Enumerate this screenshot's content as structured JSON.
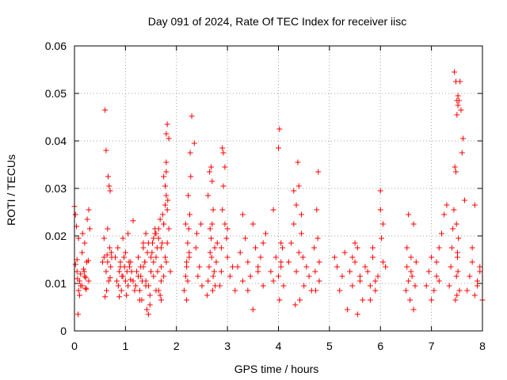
{
  "chart_data": {
    "type": "scatter",
    "title": "Day 091 of 2024, Rate Of TEC Index for receiver iisc",
    "xlabel": "GPS time / hours",
    "ylabel": "ROTI / TECUs",
    "xlim": [
      0,
      8
    ],
    "ylim": [
      0,
      0.06
    ],
    "xticks": [
      0,
      1,
      2,
      3,
      4,
      5,
      6,
      7,
      8
    ],
    "xtick_labels": [
      "0",
      "1",
      "2",
      "3",
      "4",
      "5",
      "6",
      "7",
      "8"
    ],
    "yticks": [
      0,
      0.01,
      0.02,
      0.03,
      0.04,
      0.05,
      0.06
    ],
    "ytick_labels": [
      "0",
      "0.01",
      "0.02",
      "0.03",
      "0.04",
      "0.05",
      "0.06"
    ],
    "grid": true,
    "marker": "+",
    "series_color": "#ff0000",
    "series": [
      {
        "name": "ROTI",
        "x": [
          0.0,
          0.02,
          0.04,
          0.05,
          0.06,
          0.08,
          0.1,
          0.12,
          0.15,
          0.18,
          0.2,
          0.22,
          0.25,
          0.28,
          0.3,
          0.02,
          0.07,
          0.12,
          0.16,
          0.2,
          0.24,
          0.28,
          0.05,
          0.1,
          0.15,
          0.19,
          0.23,
          0.27,
          0.08,
          0.22,
          0.55,
          0.58,
          0.6,
          0.62,
          0.64,
          0.66,
          0.68,
          0.7,
          0.72,
          0.62,
          0.63,
          0.65,
          0.67,
          0.69,
          0.71,
          0.6,
          0.65,
          0.58,
          0.7,
          0.73,
          0.8,
          0.83,
          0.86,
          0.88,
          0.9,
          0.92,
          0.95,
          0.98,
          1.0,
          1.02,
          1.05,
          1.08,
          1.1,
          1.12,
          1.15,
          1.18,
          0.85,
          0.9,
          0.95,
          1.0,
          1.05,
          1.1,
          1.15,
          0.88,
          0.93,
          0.97,
          1.03,
          1.07,
          1.2,
          1.22,
          1.25,
          1.28,
          1.3,
          1.32,
          1.35,
          1.38,
          1.4,
          1.42,
          1.45,
          1.48,
          1.5,
          1.52,
          1.55,
          1.58,
          1.6,
          1.62,
          1.65,
          1.68,
          1.7,
          1.72,
          1.75,
          1.78,
          1.8,
          1.82,
          1.85,
          1.25,
          1.3,
          1.35,
          1.4,
          1.45,
          1.5,
          1.55,
          1.6,
          1.65,
          1.7,
          1.75,
          1.8,
          1.28,
          1.33,
          1.38,
          1.43,
          1.48,
          1.53,
          1.58,
          1.63,
          1.68,
          1.73,
          1.78,
          1.83,
          1.35,
          1.4,
          1.45,
          1.5,
          1.55,
          1.6,
          1.65,
          1.7,
          1.75,
          1.8,
          1.7,
          1.75,
          1.78,
          1.8,
          1.82,
          1.85,
          1.8,
          1.82,
          1.78,
          1.88,
          2.15,
          2.18,
          2.2,
          2.22,
          2.24,
          2.26,
          2.28,
          2.2,
          2.22,
          2.25,
          2.18,
          2.23,
          2.27,
          2.2,
          2.25,
          2.3,
          2.35,
          2.4,
          2.45,
          2.5,
          2.38,
          2.42,
          2.48,
          2.6,
          2.62,
          2.64,
          2.66,
          2.68,
          2.7,
          2.72,
          2.74,
          2.76,
          2.78,
          2.8,
          2.65,
          2.68,
          2.7,
          2.72,
          2.66,
          2.69,
          2.71,
          2.62,
          2.75,
          2.85,
          2.88,
          2.9,
          2.92,
          2.95,
          2.98,
          3.0,
          3.05,
          3.1,
          3.15,
          2.9,
          2.92,
          2.95,
          2.88,
          3.0,
          3.2,
          3.25,
          3.3,
          3.35,
          3.4,
          3.45,
          3.5,
          3.55,
          3.6,
          3.65,
          3.7,
          3.75,
          3.3,
          3.4,
          3.5,
          3.6,
          3.7,
          3.85,
          3.9,
          3.95,
          4.0,
          4.02,
          4.05,
          4.08,
          4.1,
          4.0,
          4.05,
          4.02,
          3.9,
          4.05,
          4.2,
          4.25,
          4.3,
          4.35,
          4.4,
          4.45,
          4.5,
          4.55,
          4.6,
          4.65,
          4.3,
          4.35,
          4.4,
          4.45,
          4.38,
          4.42,
          4.33,
          4.48,
          4.7,
          4.72,
          4.75,
          4.78,
          4.8,
          4.73,
          4.77,
          4.8,
          5.1,
          5.15,
          5.2,
          5.25,
          5.3,
          5.35,
          5.4,
          5.45,
          5.5,
          5.55,
          5.6,
          5.65,
          5.7,
          5.5,
          5.55,
          5.45,
          5.6,
          5.75,
          5.8,
          5.85,
          5.9,
          5.95,
          6.0,
          6.05,
          6.1,
          5.8,
          5.85,
          5.9,
          6.0,
          6.02,
          6.05,
          6.5,
          6.52,
          6.55,
          6.58,
          6.6,
          6.62,
          6.65,
          6.68,
          6.55,
          6.6,
          6.65,
          6.52,
          6.7,
          6.9,
          6.95,
          7.0,
          7.05,
          7.1,
          7.15,
          7.2,
          7.25,
          7.3,
          7.0,
          7.1,
          7.15,
          7.35,
          7.38,
          7.4,
          7.42,
          7.44,
          7.46,
          7.48,
          7.5,
          7.52,
          7.54,
          7.56,
          7.58,
          7.6,
          7.62,
          7.65,
          7.45,
          7.48,
          7.5,
          7.52,
          7.47,
          7.49,
          7.51,
          7.53,
          7.55,
          7.5,
          7.52,
          7.49,
          7.51,
          7.7,
          7.75,
          7.8,
          7.85,
          7.9,
          7.95,
          8.0,
          7.8,
          7.9,
          7.95,
          7.85
        ],
        "y": [
          0.0262,
          0.0245,
          0.022,
          0.015,
          0.011,
          0.0085,
          0.0105,
          0.012,
          0.0095,
          0.013,
          0.0115,
          0.009,
          0.0235,
          0.0255,
          0.0215,
          0.014,
          0.0035,
          0.0095,
          0.0205,
          0.0185,
          0.0145,
          0.0105,
          0.0125,
          0.0075,
          0.0165,
          0.0125,
          0.0088,
          0.0148,
          0.0195,
          0.0112,
          0.0145,
          0.0155,
          0.0465,
          0.038,
          0.016,
          0.0325,
          0.0305,
          0.0295,
          0.0165,
          0.0125,
          0.0085,
          0.0145,
          0.0105,
          0.0175,
          0.0135,
          0.0072,
          0.0215,
          0.0195,
          0.0112,
          0.0155,
          0.0155,
          0.0105,
          0.0095,
          0.0125,
          0.0145,
          0.0085,
          0.0115,
          0.0135,
          0.0105,
          0.0075,
          0.0095,
          0.0135,
          0.0145,
          0.0125,
          0.0105,
          0.0085,
          0.0175,
          0.0135,
          0.0195,
          0.0165,
          0.0205,
          0.0108,
          0.0232,
          0.0072,
          0.0115,
          0.0155,
          0.0125,
          0.0145,
          0.0095,
          0.0125,
          0.0155,
          0.0085,
          0.0115,
          0.0065,
          0.0185,
          0.0145,
          0.0105,
          0.0045,
          0.0035,
          0.0075,
          0.0125,
          0.0165,
          0.0195,
          0.0205,
          0.0155,
          0.0175,
          0.0215,
          0.0235,
          0.0135,
          0.0185,
          0.0325,
          0.0305,
          0.0415,
          0.0435,
          0.0405,
          0.0115,
          0.0135,
          0.0175,
          0.0205,
          0.0095,
          0.0125,
          0.0145,
          0.0085,
          0.0195,
          0.0105,
          0.0225,
          0.0285,
          0.0065,
          0.0105,
          0.0145,
          0.0165,
          0.0055,
          0.0185,
          0.0215,
          0.0125,
          0.0075,
          0.0245,
          0.0155,
          0.0275,
          0.0135,
          0.0095,
          0.0185,
          0.0155,
          0.0115,
          0.0205,
          0.0085,
          0.0175,
          0.0225,
          0.0145,
          0.0065,
          0.0115,
          0.0305,
          0.0335,
          0.0255,
          0.0215,
          0.0355,
          0.0185,
          0.0265,
          0.0125,
          0.0085,
          0.0115,
          0.0145,
          0.0185,
          0.0215,
          0.0245,
          0.0325,
          0.0065,
          0.0105,
          0.0165,
          0.0225,
          0.0285,
          0.0375,
          0.0135,
          0.0155,
          0.0452,
          0.0395,
          0.0205,
          0.0135,
          0.0095,
          0.0175,
          0.0115,
          0.0225,
          0.0075,
          0.0105,
          0.0135,
          0.0165,
          0.0195,
          0.0225,
          0.0255,
          0.0125,
          0.0095,
          0.0145,
          0.0185,
          0.0335,
          0.0345,
          0.0315,
          0.0115,
          0.0215,
          0.0155,
          0.0085,
          0.0285,
          0.0175,
          0.0095,
          0.0125,
          0.0385,
          0.0375,
          0.0225,
          0.0195,
          0.0155,
          0.0115,
          0.0135,
          0.0085,
          0.0255,
          0.0305,
          0.0345,
          0.0175,
          0.0215,
          0.0135,
          0.0165,
          0.0105,
          0.0195,
          0.0145,
          0.0115,
          0.0045,
          0.0175,
          0.0125,
          0.0155,
          0.0095,
          0.0205,
          0.0245,
          0.0085,
          0.0225,
          0.0135,
          0.0185,
          0.0125,
          0.0105,
          0.0155,
          0.0385,
          0.0425,
          0.0145,
          0.0175,
          0.0095,
          0.0115,
          0.0135,
          0.0065,
          0.0255,
          0.0185,
          0.0145,
          0.0185,
          0.0225,
          0.0125,
          0.0165,
          0.0205,
          0.0095,
          0.0135,
          0.0115,
          0.0085,
          0.0295,
          0.0265,
          0.0305,
          0.0245,
          0.0355,
          0.0065,
          0.0055,
          0.0155,
          0.0175,
          0.0125,
          0.0255,
          0.0335,
          0.0145,
          0.0085,
          0.0195,
          0.0105,
          0.0155,
          0.0135,
          0.0085,
          0.0115,
          0.0165,
          0.0045,
          0.0125,
          0.0095,
          0.0145,
          0.0175,
          0.0105,
          0.0065,
          0.0135,
          0.0185,
          0.0035,
          0.0155,
          0.0115,
          0.0125,
          0.0095,
          0.0155,
          0.0085,
          0.0115,
          0.0295,
          0.0225,
          0.0135,
          0.0065,
          0.0175,
          0.0105,
          0.0255,
          0.0195,
          0.0145,
          0.0085,
          0.0135,
          0.0105,
          0.0065,
          0.0155,
          0.0115,
          0.0045,
          0.0095,
          0.0245,
          0.0125,
          0.0225,
          0.0175,
          0.0145,
          0.0095,
          0.0125,
          0.0155,
          0.0085,
          0.0115,
          0.0175,
          0.0205,
          0.0245,
          0.0265,
          0.0065,
          0.0145,
          0.0105,
          0.0095,
          0.0135,
          0.0175,
          0.0215,
          0.0255,
          0.0345,
          0.0335,
          0.0455,
          0.0495,
          0.0485,
          0.0525,
          0.0465,
          0.0375,
          0.0405,
          0.0275,
          0.0545,
          0.0525,
          0.0485,
          0.0475,
          0.0065,
          0.0115,
          0.0155,
          0.0195,
          0.0085,
          0.0075,
          0.0125,
          0.0225,
          0.0165,
          0.0085,
          0.0115,
          0.0145,
          0.0075,
          0.0105,
          0.0125,
          0.0065,
          0.0175,
          0.0095,
          0.0135,
          0.0265
        ]
      }
    ]
  }
}
